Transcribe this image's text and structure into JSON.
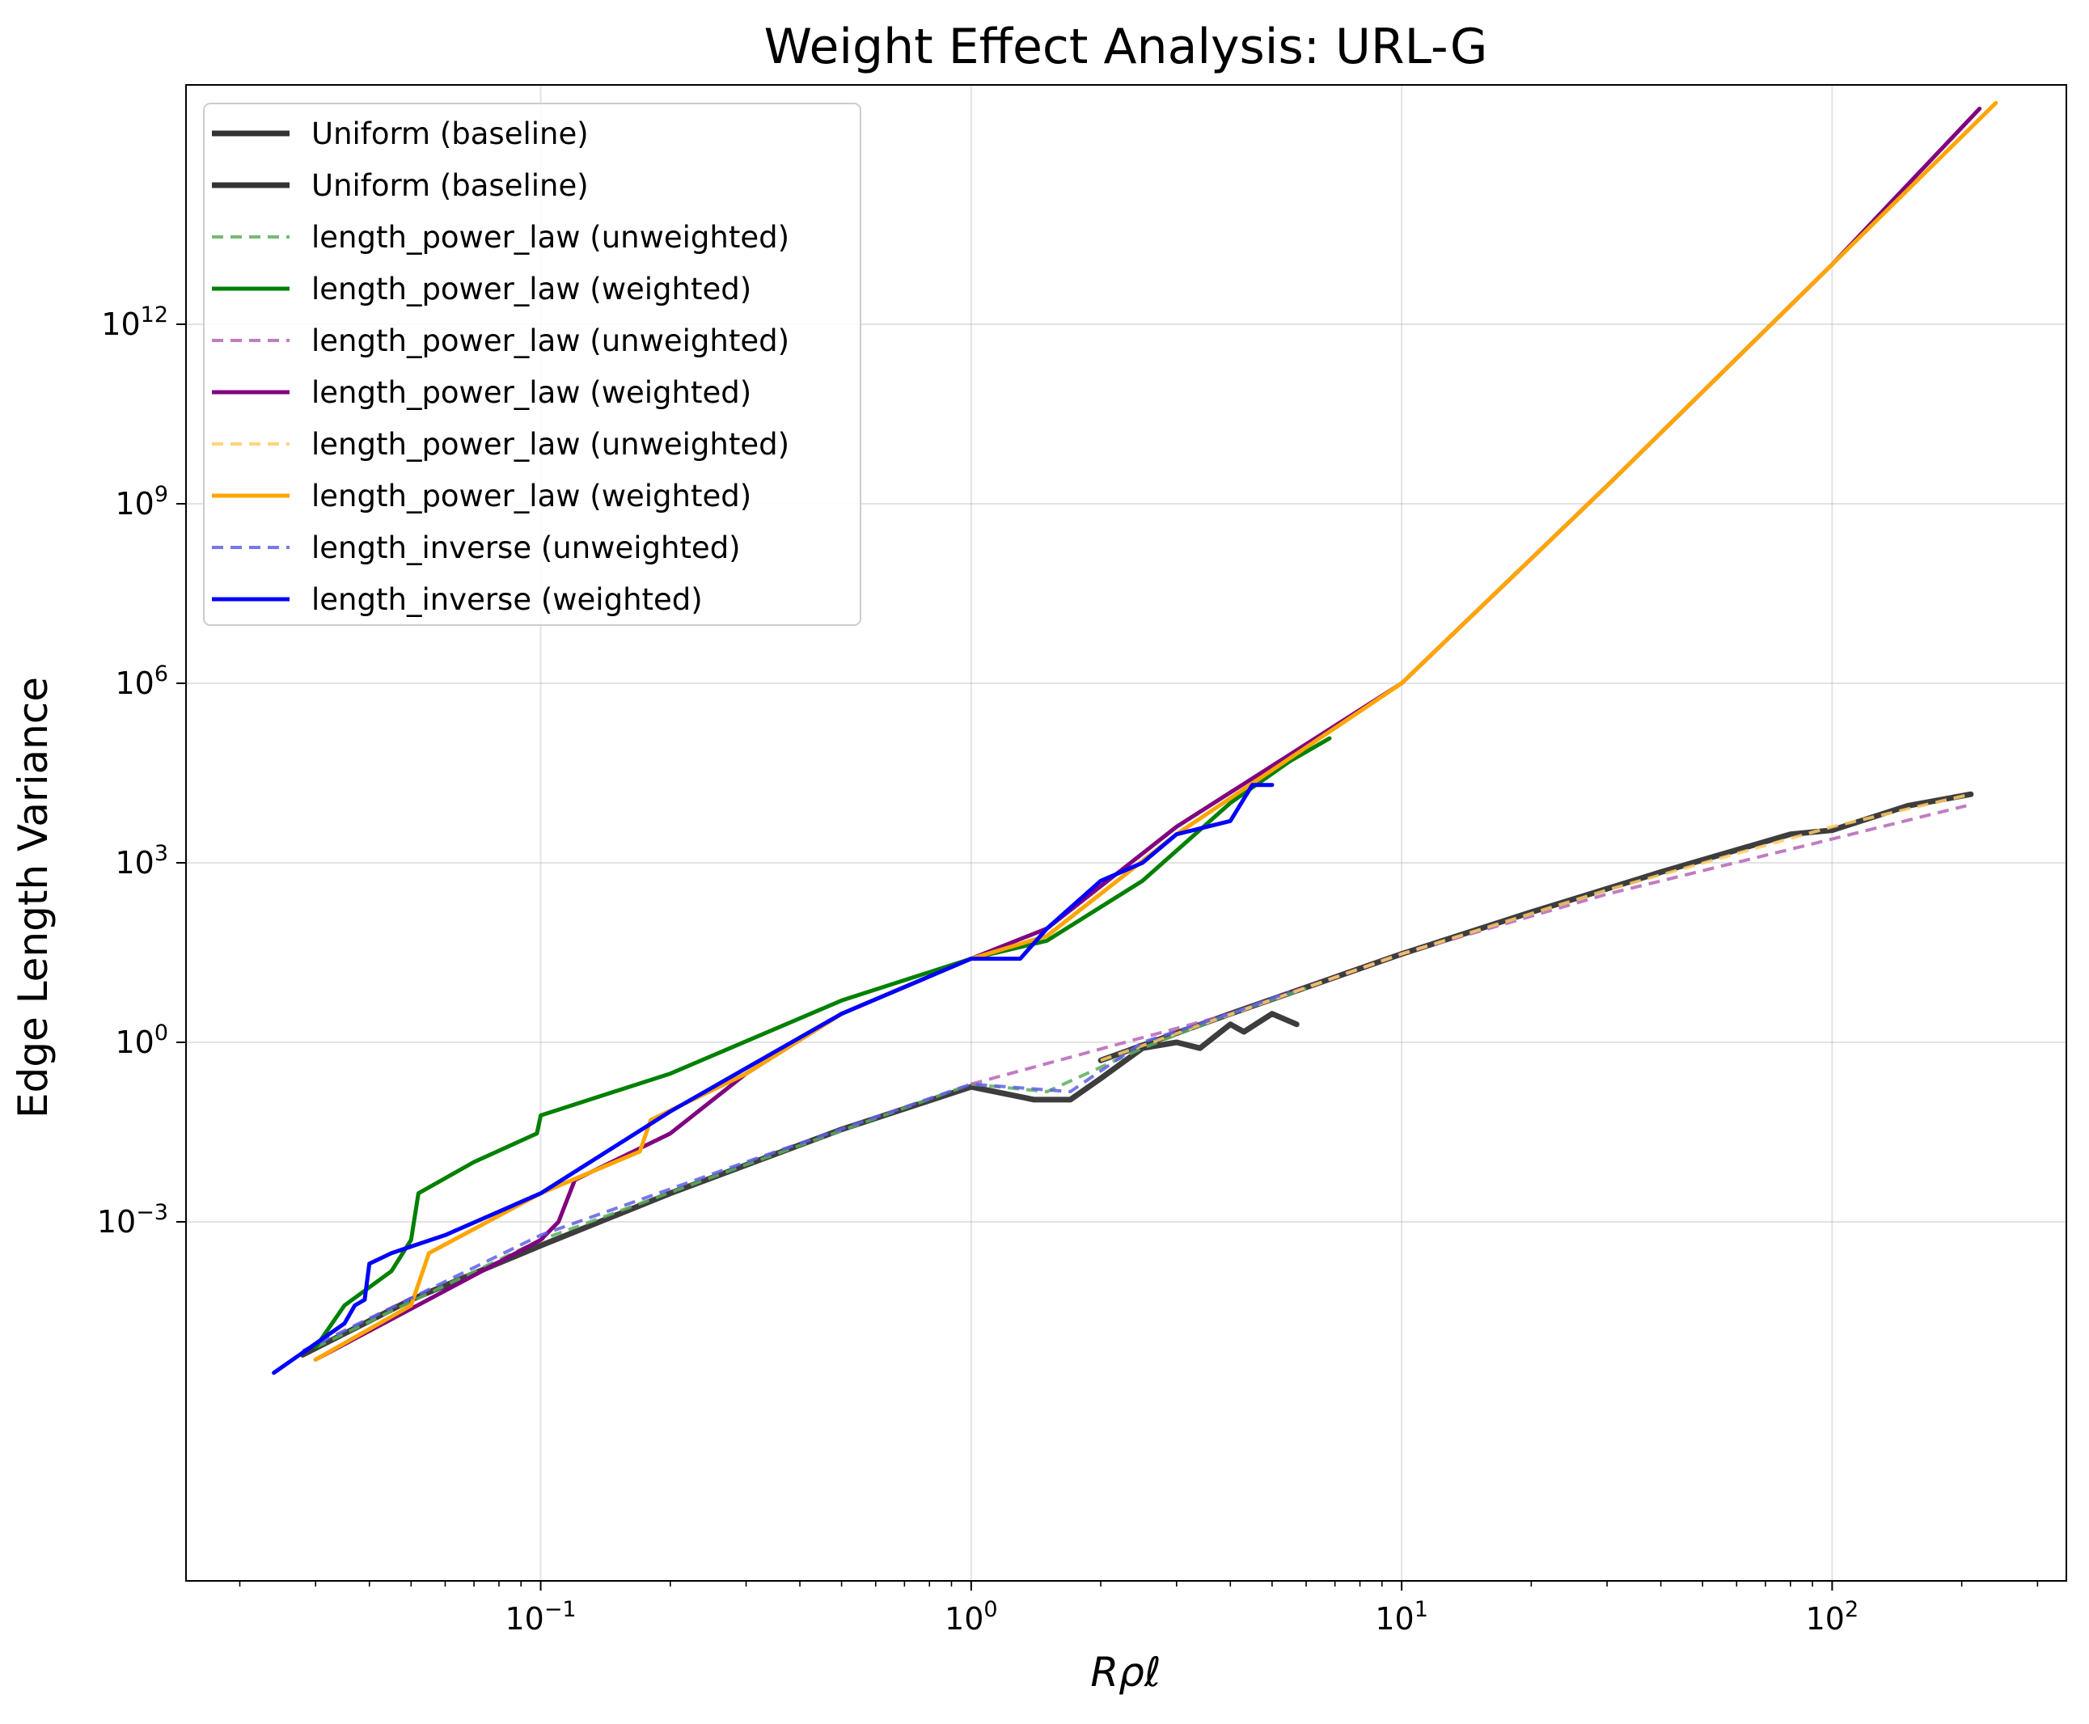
{
  "chart_data": {
    "type": "line",
    "title": "Weight Effect Analysis: URL-G",
    "xlabel": "Rρℓ",
    "ylabel": "Edge Length Variance",
    "xscale": "log",
    "yscale": "log",
    "xlim": [
      0.015,
      350
    ],
    "ylim": [
      1e-09,
      1e+16
    ],
    "x_ticks": [
      {
        "value": 0.1,
        "base": "10",
        "exp": "−1"
      },
      {
        "value": 1,
        "base": "10",
        "exp": "0"
      },
      {
        "value": 10,
        "base": "10",
        "exp": "1"
      },
      {
        "value": 100,
        "base": "10",
        "exp": "2"
      }
    ],
    "y_ticks": [
      {
        "value": 0.001,
        "base": "10",
        "exp": "−3"
      },
      {
        "value": 1,
        "base": "10",
        "exp": "0"
      },
      {
        "value": 1000.0,
        "base": "10",
        "exp": "3"
      },
      {
        "value": 1000000.0,
        "base": "10",
        "exp": "6"
      },
      {
        "value": 1000000000.0,
        "base": "10",
        "exp": "9"
      },
      {
        "value": 1000000000000.0,
        "base": "10",
        "exp": "12"
      }
    ],
    "grid": true,
    "legend_position": "top-left",
    "series": [
      {
        "name": "Uniform (baseline)",
        "color": "#333333",
        "style": "solid",
        "width": 7,
        "x": [
          0.028,
          0.05,
          0.1,
          0.2,
          0.5,
          1.0,
          1.4,
          1.7,
          2.0,
          2.5,
          3.0,
          3.4,
          4.0,
          4.3,
          5.0,
          5.7
        ],
        "y": [
          6e-06,
          5e-05,
          0.0004,
          0.003,
          0.035,
          0.18,
          0.11,
          0.11,
          0.25,
          0.8,
          1.0,
          0.8,
          2.0,
          1.5,
          3.0,
          2.0
        ]
      },
      {
        "name": "Uniform (baseline)",
        "color": "#333333",
        "style": "solid",
        "width": 7,
        "x": [
          2.0,
          4.0,
          10,
          20,
          40,
          80,
          100,
          150,
          210
        ],
        "y": [
          0.5,
          3.0,
          30,
          150,
          700,
          3000,
          3500,
          9000,
          14000
        ]
      },
      {
        "name": "length_power_law (unweighted)",
        "color": "#5caf5c",
        "style": "dashed",
        "width": 4,
        "x": [
          0.03,
          0.1,
          0.3,
          1.0,
          1.5,
          2.5,
          4.0,
          6.0
        ],
        "y": [
          8e-06,
          0.0005,
          0.009,
          0.2,
          0.15,
          0.8,
          3.0,
          8.0
        ]
      },
      {
        "name": "length_power_law (weighted)",
        "color": "#008000",
        "style": "solid",
        "width": 5,
        "x": [
          0.03,
          0.035,
          0.045,
          0.05,
          0.052,
          0.07,
          0.098,
          0.1,
          0.2,
          0.5,
          1.0,
          1.5,
          2.5,
          4.0,
          5.5,
          6.8
        ],
        "y": [
          8e-06,
          4e-05,
          0.00015,
          0.0005,
          0.003,
          0.01,
          0.03,
          0.06,
          0.3,
          5.0,
          25,
          50,
          500,
          10000,
          50000,
          120000
        ]
      },
      {
        "name": "length_power_law (unweighted)",
        "color": "#b565b5",
        "style": "dashed",
        "width": 4,
        "x": [
          1.0,
          4.0,
          10,
          30,
          100,
          205
        ],
        "y": [
          0.2,
          3.0,
          30,
          300,
          2500,
          9000
        ]
      },
      {
        "name": "length_power_law (weighted)",
        "color": "#800080",
        "style": "solid",
        "width": 5,
        "x": [
          0.03,
          0.1,
          0.11,
          0.12,
          0.2,
          0.3,
          0.5,
          1.0,
          1.5,
          3.0,
          10,
          30,
          100,
          220
        ],
        "y": [
          5e-06,
          0.0005,
          0.001,
          0.005,
          0.03,
          0.3,
          3.0,
          25,
          80,
          4000,
          1000000,
          2000000000,
          10000000000000,
          4000000000000000
        ]
      },
      {
        "name": "length_power_law (unweighted)",
        "color": "#ffcc66",
        "style": "dashed",
        "width": 4,
        "x": [
          2.0,
          10,
          30,
          100,
          210
        ],
        "y": [
          0.5,
          30,
          350,
          4000,
          14000
        ]
      },
      {
        "name": "length_power_law (weighted)",
        "color": "#ffa500",
        "style": "solid",
        "width": 5,
        "x": [
          0.03,
          0.05,
          0.055,
          0.1,
          0.17,
          0.18,
          0.3,
          0.5,
          1.0,
          1.5,
          3.0,
          10,
          30,
          100,
          240
        ],
        "y": [
          5e-06,
          4e-05,
          0.0003,
          0.003,
          0.015,
          0.05,
          0.3,
          3.0,
          25,
          60,
          3000,
          1000000,
          2000000000,
          10000000000000,
          5000000000000000
        ]
      },
      {
        "name": "length_inverse (unweighted)",
        "color": "#5f5fe8",
        "style": "dashed",
        "width": 4,
        "x": [
          0.028,
          0.1,
          0.3,
          1.0,
          1.7,
          2.5,
          4.0,
          5.5
        ],
        "y": [
          7e-06,
          0.0006,
          0.01,
          0.2,
          0.15,
          1.0,
          3.0,
          7.0
        ]
      },
      {
        "name": "length_inverse (weighted)",
        "color": "#0000ff",
        "style": "solid",
        "width": 5,
        "x": [
          0.024,
          0.035,
          0.037,
          0.039,
          0.04,
          0.045,
          0.06,
          0.1,
          0.2,
          0.5,
          1.0,
          1.3,
          1.5,
          2.0,
          2.5,
          3.0,
          4.0,
          4.5,
          5.0
        ],
        "y": [
          3e-06,
          2e-05,
          4e-05,
          5e-05,
          0.0002,
          0.0003,
          0.0006,
          0.003,
          0.07,
          3.0,
          25,
          25,
          80,
          500,
          1000,
          3000,
          5000,
          20000,
          20000
        ]
      }
    ]
  }
}
